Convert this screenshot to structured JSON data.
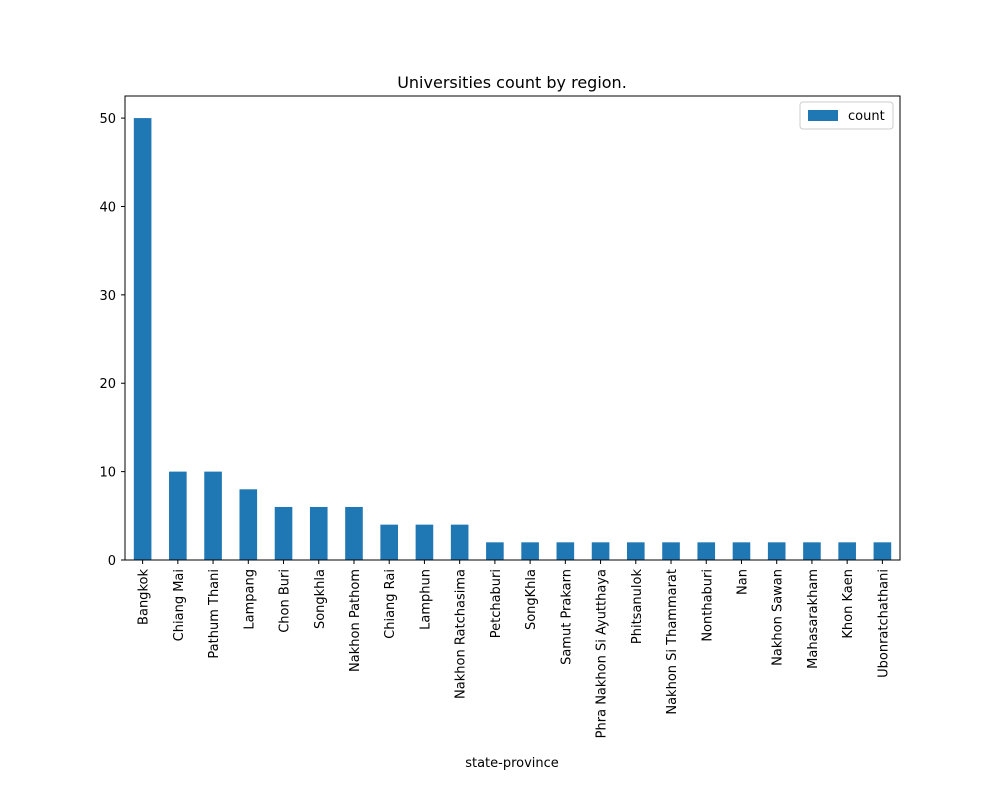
{
  "chart_data": {
    "type": "bar",
    "title": "Universities count by region.",
    "xlabel": "state-province",
    "ylabel": "",
    "ylim": [
      0,
      52.5
    ],
    "yticks": [
      0,
      10,
      20,
      30,
      40,
      50
    ],
    "grid": false,
    "legend_position": "top-right",
    "categories": [
      "Bangkok",
      "Chiang Mai",
      "Pathum Thani",
      "Lampang",
      "Chon Buri",
      "Songkhla",
      "Nakhon Pathom",
      "Chiang Rai",
      "Lamphun",
      "Nakhon Ratchasima",
      "Petchaburi",
      "SongKhla",
      "Samut Prakarn",
      "Phra Nakhon Si Ayutthaya",
      "Phitsanulok",
      "Nakhon Si Thammarat",
      "Nonthaburi",
      "Nan",
      "Nakhon Sawan",
      "Mahasarakham",
      "Khon Kaen",
      "Ubonratchathani"
    ],
    "series": [
      {
        "name": "count",
        "color": "#1f77b4",
        "values": [
          50,
          10,
          10,
          8,
          6,
          6,
          6,
          4,
          4,
          4,
          2,
          2,
          2,
          2,
          2,
          2,
          2,
          2,
          2,
          2,
          2,
          2
        ]
      }
    ]
  }
}
